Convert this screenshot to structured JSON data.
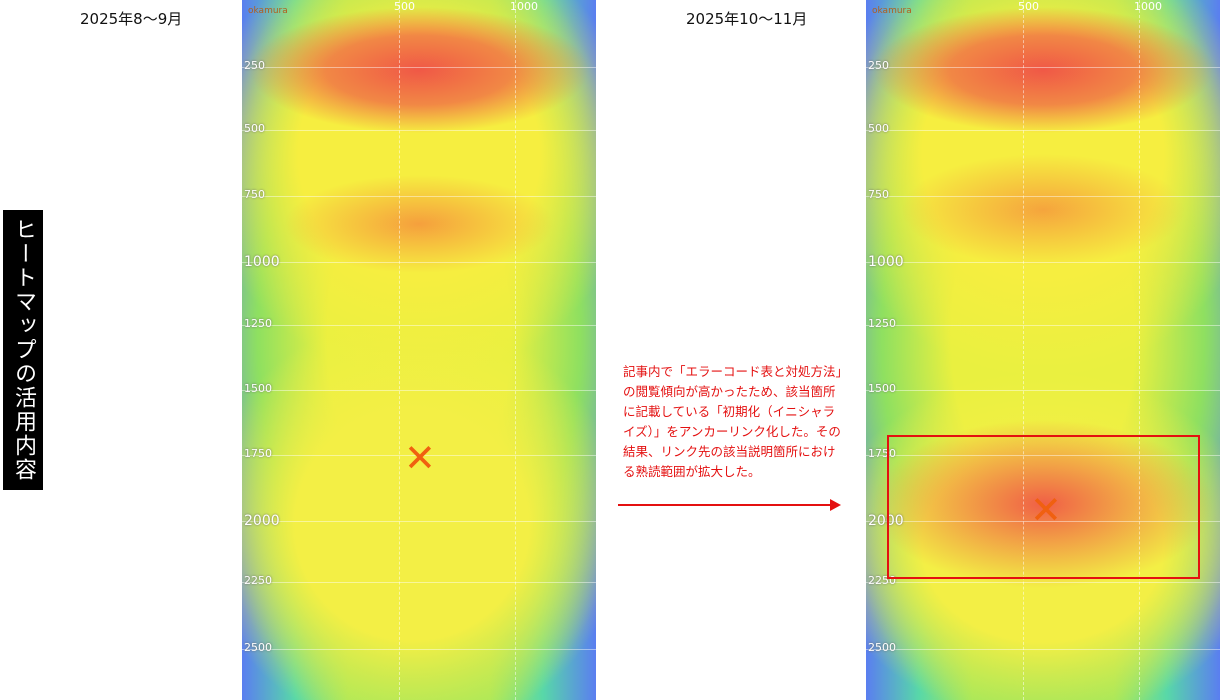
{
  "periods": {
    "left": "2025年8〜9月",
    "right": "2025年10〜11月"
  },
  "side_label": "ヒートマップの活用内容",
  "heatmap": {
    "logo": "okamura",
    "x_ticks": [
      "500",
      "1000"
    ],
    "y_ticks": [
      "250",
      "500",
      "750",
      "1000",
      "1250",
      "1500",
      "1750",
      "2000",
      "2250",
      "2500"
    ]
  },
  "note": "記事内で「エラーコード表と対処方法」の閲覧傾向が高かったため、該当箇所に記載している「初期化（イニシャライズ）」をアンカーリンク化した。その結果、リンク先の該当説明箇所における熟読範囲が拡大した。",
  "colors": {
    "accent": "#e41010",
    "label_bg": "#000000"
  }
}
